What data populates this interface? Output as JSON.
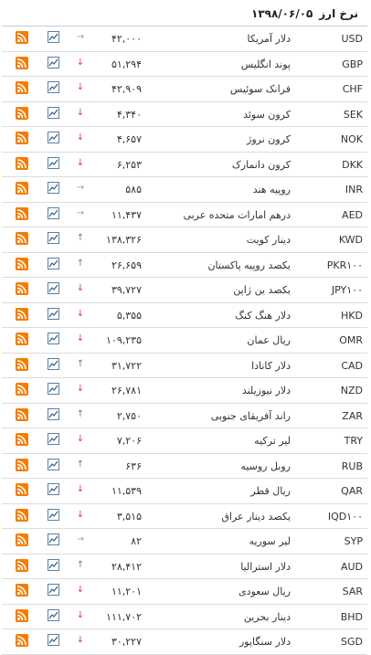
{
  "header": {
    "title": "نرخ ارز",
    "date": "۱۳۹۸/۰۶/۰۵"
  },
  "rows": [
    {
      "code": "USD",
      "name": "دلار آمریکا",
      "value": "۴۲,۰۰۰",
      "trend": "same"
    },
    {
      "code": "GBP",
      "name": "پوند انگلیس",
      "value": "۵۱,۲۹۴",
      "trend": "down"
    },
    {
      "code": "CHF",
      "name": "فرانک سوئیس",
      "value": "۴۲,۹۰۹",
      "trend": "down"
    },
    {
      "code": "SEK",
      "name": "کرون سوئد",
      "value": "۴,۳۴۰",
      "trend": "down"
    },
    {
      "code": "NOK",
      "name": "کرون نروژ",
      "value": "۴,۶۵۷",
      "trend": "down"
    },
    {
      "code": "DKK",
      "name": "کرون دانمارک",
      "value": "۶,۲۵۳",
      "trend": "down"
    },
    {
      "code": "INR",
      "name": "روپیه هند",
      "value": "۵۸۵",
      "trend": "same"
    },
    {
      "code": "AED",
      "name": "درهم امارات متحده عربی",
      "value": "۱۱,۴۳۷",
      "trend": "same"
    },
    {
      "code": "KWD",
      "name": "دینار کویت",
      "value": "۱۳۸,۳۲۶",
      "trend": "up"
    },
    {
      "code": "PKR۱۰۰",
      "name": "یکصد روپیه پاکستان",
      "value": "۲۶,۶۵۹",
      "trend": "up"
    },
    {
      "code": "JPY۱۰۰",
      "name": "یکصد ین ژاپن",
      "value": "۳۹,۷۲۷",
      "trend": "down"
    },
    {
      "code": "HKD",
      "name": "دلار هنگ کنگ",
      "value": "۵,۳۵۵",
      "trend": "down"
    },
    {
      "code": "OMR",
      "name": "ریال عمان",
      "value": "۱۰۹,۲۳۵",
      "trend": "down"
    },
    {
      "code": "CAD",
      "name": "دلار کانادا",
      "value": "۳۱,۷۲۲",
      "trend": "up"
    },
    {
      "code": "NZD",
      "name": "دلار نیوزیلند",
      "value": "۲۶,۷۸۱",
      "trend": "down"
    },
    {
      "code": "ZAR",
      "name": "راند آفریقای جنوبی",
      "value": "۲,۷۵۰",
      "trend": "up"
    },
    {
      "code": "TRY",
      "name": "لیر ترکیه",
      "value": "۷,۲۰۶",
      "trend": "down"
    },
    {
      "code": "RUB",
      "name": "روبل روسیه",
      "value": "۶۳۶",
      "trend": "up"
    },
    {
      "code": "QAR",
      "name": "ریال قطر",
      "value": "۱۱,۵۳۹",
      "trend": "down"
    },
    {
      "code": "IQD۱۰۰",
      "name": "یکصد دینار عراق",
      "value": "۳,۵۱۵",
      "trend": "down"
    },
    {
      "code": "SYP",
      "name": "لیر سوریه",
      "value": "۸۲",
      "trend": "same"
    },
    {
      "code": "AUD",
      "name": "دلار استرالیا",
      "value": "۲۸,۴۱۲",
      "trend": "up"
    },
    {
      "code": "SAR",
      "name": "ریال سعودی",
      "value": "۱۱,۲۰۱",
      "trend": "down"
    },
    {
      "code": "BHD",
      "name": "دینار بحرین",
      "value": "۱۱۱,۷۰۲",
      "trend": "down"
    },
    {
      "code": "SGD",
      "name": "دلار سنگاپور",
      "value": "۳۰,۲۲۷",
      "trend": "down"
    }
  ],
  "icons": {
    "chart": "chart-icon",
    "rss": "rss-icon"
  },
  "colors": {
    "up": "#43a047",
    "down": "#e53935",
    "same": "#9e9e9e",
    "rss": "#f57c00"
  }
}
